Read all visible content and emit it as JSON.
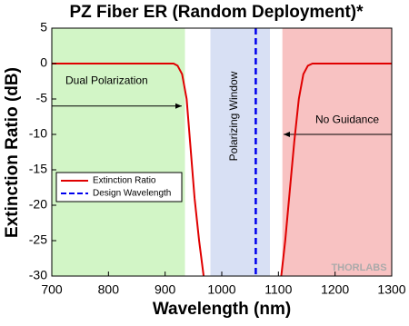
{
  "chart_data": {
    "type": "line",
    "title": "PZ Fiber ER (Random Deployment)*",
    "x_label": "Wavelength (nm)",
    "y_label": "Extinction Ratio (dB)",
    "xlim": [
      700,
      1300
    ],
    "xticks": [
      700,
      800,
      900,
      1000,
      1100,
      1200,
      1300
    ],
    "ylim": [
      -30,
      5
    ],
    "yticks": [
      5,
      0,
      -5,
      -10,
      -15,
      -20,
      -25,
      -30
    ],
    "regions": [
      {
        "xlim": [
          700,
          935
        ],
        "color": "#d2f5c6"
      },
      {
        "xlim": [
          980,
          1085
        ],
        "color": "#d8e0f4"
      },
      {
        "xlim": [
          1107,
          1300
        ],
        "color": "#f8c2c2"
      }
    ],
    "series": [
      {
        "name": "Extinction Ratio",
        "color": "#e00000",
        "x": [
          700,
          900,
          915,
          922,
          930,
          938,
          945,
          952,
          960,
          968,
          1040,
          1105,
          1112,
          1120,
          1128,
          1136,
          1144,
          1152,
          1160,
          1170,
          1300
        ],
        "values": [
          0,
          0,
          0,
          -0.3,
          -1.5,
          -5,
          -12,
          -19,
          -25,
          -30,
          null,
          -30,
          -25,
          -18,
          -11,
          -5,
          -1.5,
          -0.3,
          0,
          0,
          0
        ]
      }
    ],
    "vlines": [
      {
        "name": "Design Wavelength",
        "color": "#0000ee",
        "x": 1060
      }
    ],
    "annotations": [
      "Dual Polarization",
      "Polarizing Window",
      "No Guidance"
    ],
    "watermark": "THORLABS",
    "legend": "lower-left"
  }
}
